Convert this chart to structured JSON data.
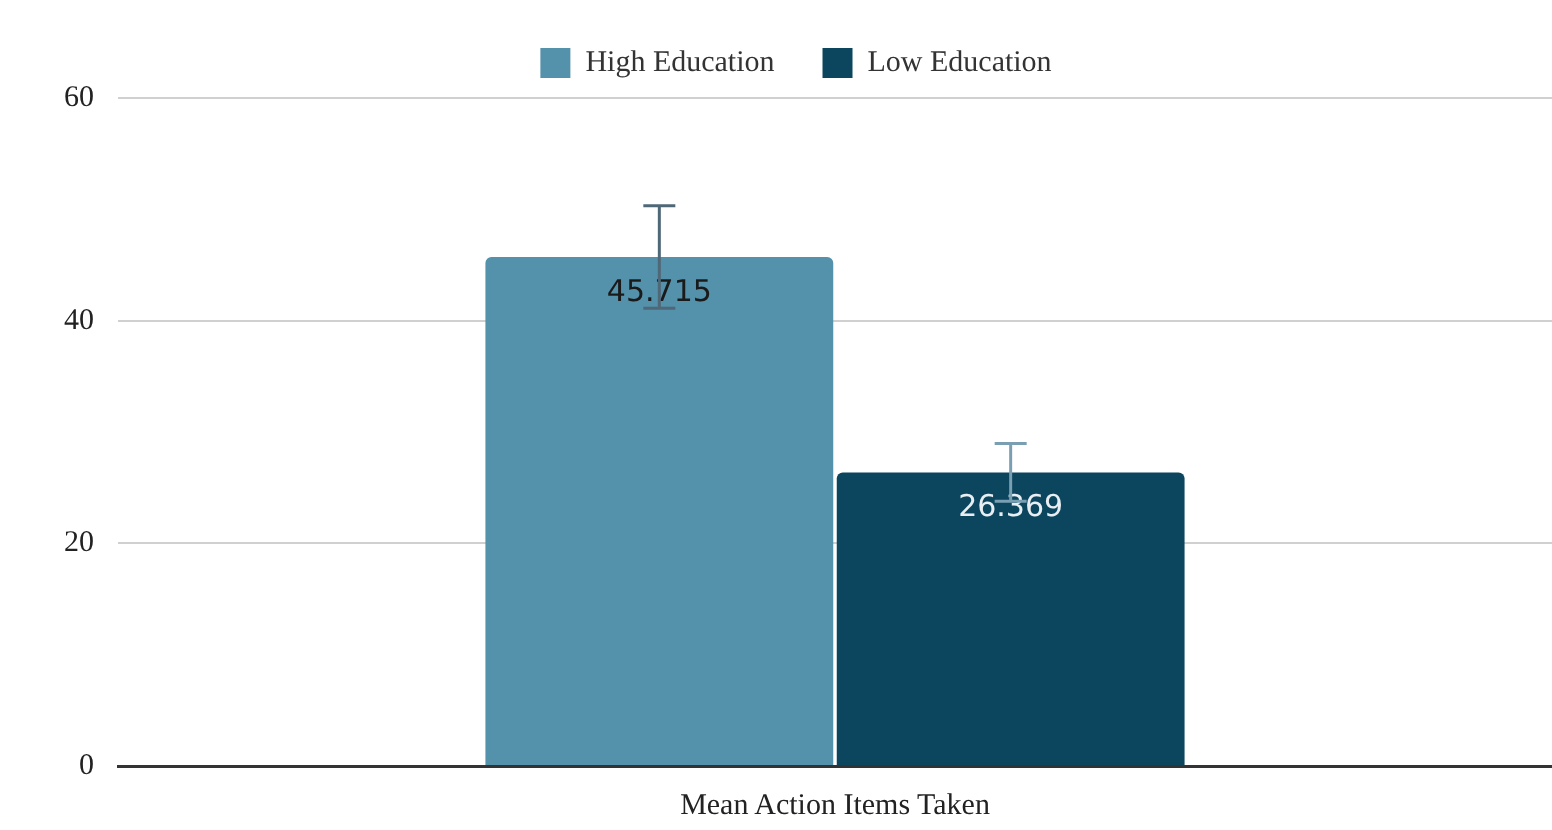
{
  "chart_data": {
    "type": "bar",
    "categories": [
      "Mean Action Items Taken"
    ],
    "series": [
      {
        "name": "High Education",
        "color": "#5491ab",
        "values": [
          45.715
        ],
        "errors": [
          4.6
        ]
      },
      {
        "name": "Low Education",
        "color": "#0b465e",
        "values": [
          26.369
        ],
        "errors": [
          2.6
        ]
      }
    ],
    "ylim": [
      0,
      60
    ],
    "yticks": [
      0,
      20,
      40,
      60
    ],
    "grid": "y",
    "legend": "top",
    "data_labels": true
  }
}
